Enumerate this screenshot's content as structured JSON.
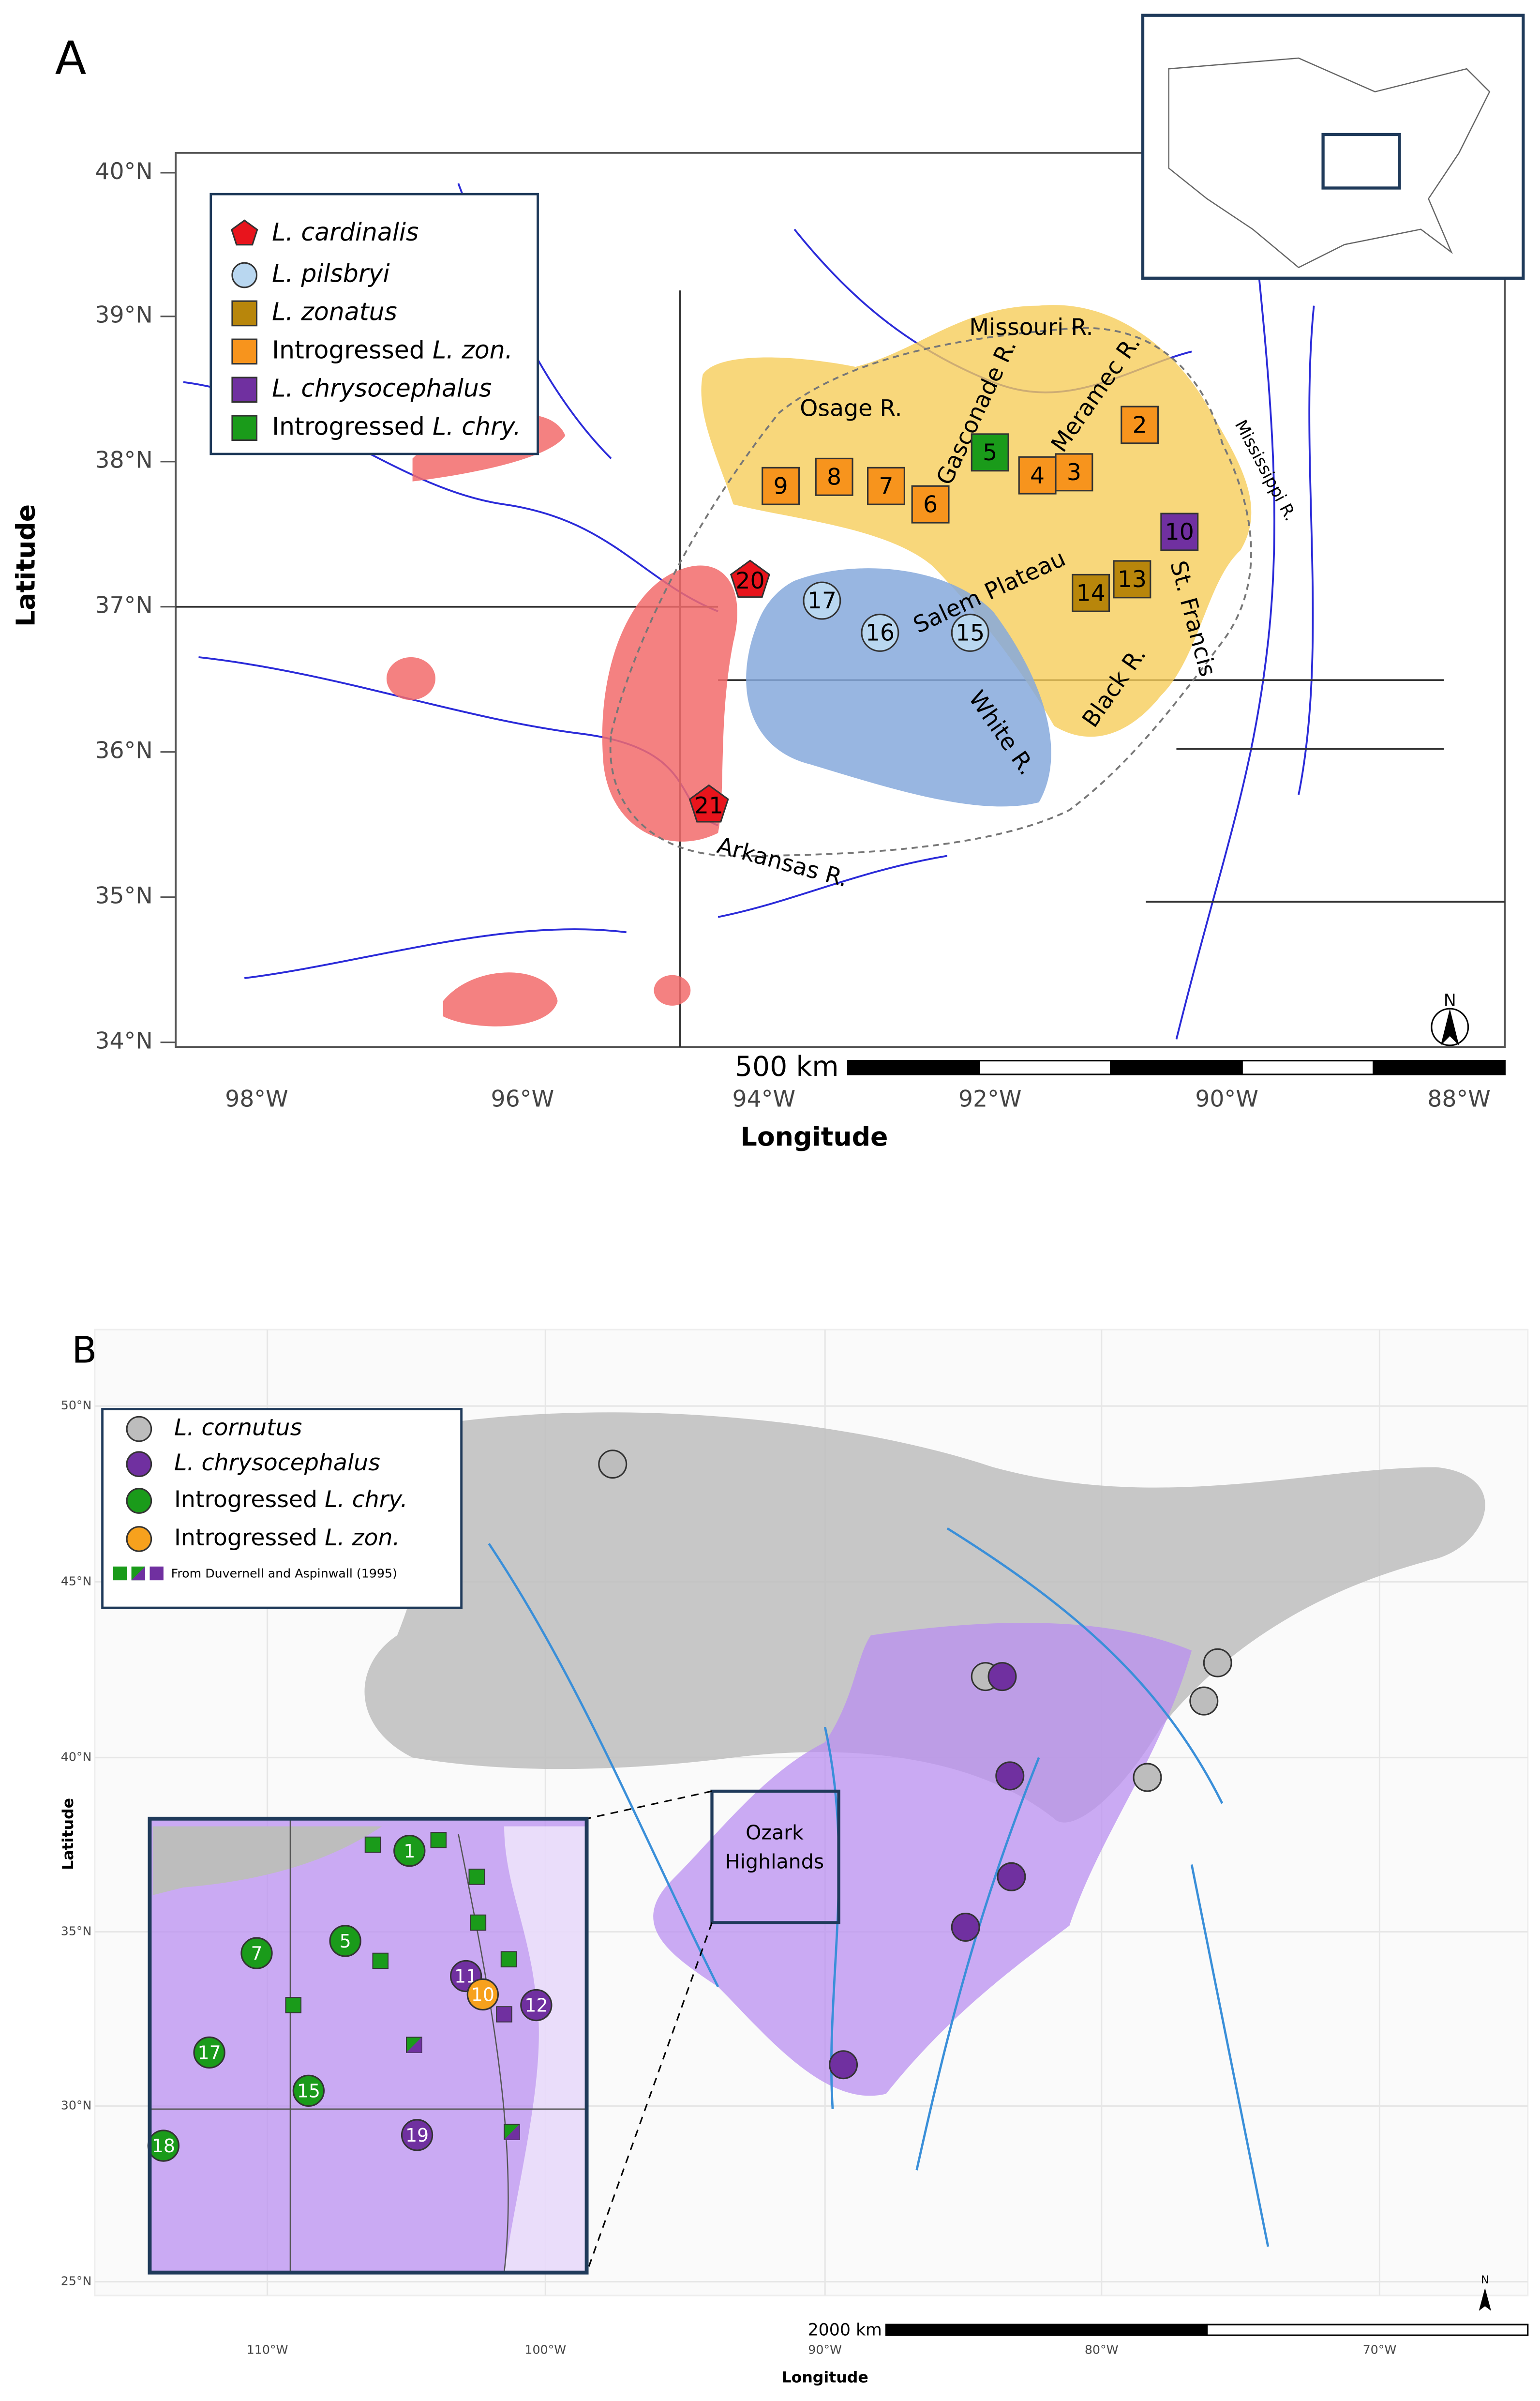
{
  "panel_a": {
    "label": "A",
    "y_axis_title": "Latitude",
    "x_axis_title": "Longitude",
    "lat_ticks": [
      "40°N",
      "39°N",
      "38°N",
      "37°N",
      "36°N",
      "35°N",
      "34°N"
    ],
    "lon_ticks": [
      "98°W",
      "96°W",
      "94°W",
      "92°W",
      "90°W",
      "88°W"
    ],
    "scale_bar": "500 km",
    "north": "N",
    "legend": [
      {
        "species": "L. cardinalis",
        "color": "#e8141c",
        "shape": "pentagon"
      },
      {
        "species": "L. pilsbryi",
        "color": "#b9d7f0",
        "shape": "circle"
      },
      {
        "species": "L. zonatus",
        "color": "#b8860b",
        "shape": "square"
      },
      {
        "prefix": "Introgressed",
        "species": "L. zon.",
        "color": "#f7941d",
        "shape": "square"
      },
      {
        "species": "L. chrysocephalus",
        "color": "#7030a0",
        "shape": "square"
      },
      {
        "prefix": "Introgressed",
        "species": "L. chry.",
        "color": "#1a9b1a",
        "shape": "square"
      }
    ],
    "places": [
      "Missouri R.",
      "Osage R.",
      "Gasconade R.",
      "Meramec R.",
      "Mississippi R.",
      "Salem Plateau",
      "St. Francis",
      "Black R.",
      "White R.",
      "Arkansas R."
    ],
    "sites": [
      {
        "label": "9",
        "color": "#f7941d",
        "shape": "square"
      },
      {
        "label": "8",
        "color": "#f7941d",
        "shape": "square"
      },
      {
        "label": "7",
        "color": "#f7941d",
        "shape": "square"
      },
      {
        "label": "6",
        "color": "#f7941d",
        "shape": "square"
      },
      {
        "label": "5",
        "color": "#1a9b1a",
        "shape": "square"
      },
      {
        "label": "4",
        "color": "#f7941d",
        "shape": "square"
      },
      {
        "label": "3",
        "color": "#f7941d",
        "shape": "square"
      },
      {
        "label": "2",
        "color": "#f7941d",
        "shape": "square"
      },
      {
        "label": "10",
        "color": "#7030a0",
        "shape": "square"
      },
      {
        "label": "14",
        "color": "#b8860b",
        "shape": "square"
      },
      {
        "label": "13",
        "color": "#b8860b",
        "shape": "square"
      },
      {
        "label": "17",
        "color": "#b9d7f0",
        "shape": "circle"
      },
      {
        "label": "16",
        "color": "#b9d7f0",
        "shape": "circle"
      },
      {
        "label": "15",
        "color": "#b9d7f0",
        "shape": "circle"
      },
      {
        "label": "20",
        "color": "#e8141c",
        "shape": "pentagon"
      },
      {
        "label": "21",
        "color": "#e8141c",
        "shape": "pentagon"
      }
    ]
  },
  "panel_b": {
    "label": "B",
    "y_axis_title": "Latitude",
    "x_axis_title": "Longitude",
    "lat_ticks": [
      "50°N",
      "45°N",
      "40°N",
      "35°N",
      "30°N",
      "25°N"
    ],
    "lon_ticks": [
      "110°W",
      "100°W",
      "90°W",
      "80°W",
      "70°W"
    ],
    "scale_bar": "2000 km",
    "north": "N",
    "legend": [
      {
        "species": "L. cornutus",
        "color": "#bdbdbd"
      },
      {
        "species": "L. chrysocephalus",
        "color": "#7030a0"
      },
      {
        "prefix": "Introgressed",
        "species": "L. chry.",
        "color": "#1a9b1a"
      },
      {
        "prefix": "Introgressed",
        "species": "L. zon.",
        "color": "#f7a11d"
      }
    ],
    "legend_note": "From Duvernell and Aspinwall (1995)",
    "box_label": [
      "Ozark",
      "Highlands"
    ],
    "inset_sites": [
      {
        "label": "1",
        "color": "#1a9b1a"
      },
      {
        "label": "7",
        "color": "#1a9b1a"
      },
      {
        "label": "5",
        "color": "#1a9b1a"
      },
      {
        "label": "17",
        "color": "#1a9b1a"
      },
      {
        "label": "15",
        "color": "#1a9b1a"
      },
      {
        "label": "18",
        "color": "#1a9b1a"
      },
      {
        "label": "11",
        "color": "#7030a0"
      },
      {
        "label": "12",
        "color": "#7030a0"
      },
      {
        "label": "19",
        "color": "#7030a0"
      },
      {
        "label": "10",
        "color": "#f7a11d"
      }
    ]
  }
}
